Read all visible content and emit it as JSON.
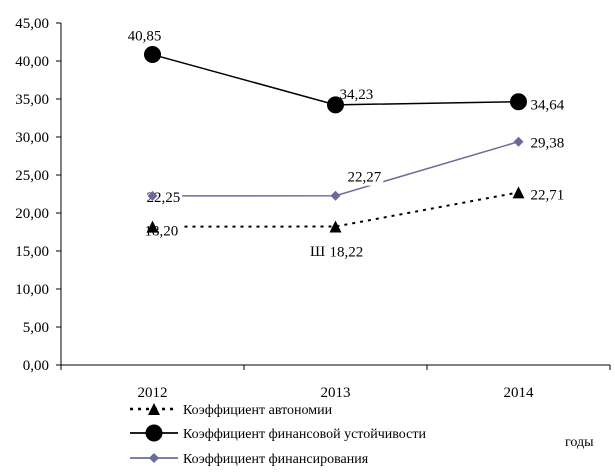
{
  "chart_data": {
    "type": "line",
    "categories": [
      "2012",
      "2013",
      "2014"
    ],
    "ylim": [
      0,
      45
    ],
    "yticks": [
      "0,00",
      "5,00",
      "10,00",
      "15,00",
      "20,00",
      "25,00",
      "30,00",
      "35,00",
      "40,00",
      "45,00"
    ],
    "xlabel": "годы",
    "legend_position": "bottom",
    "grid": false,
    "series": [
      {
        "name": "Коэффициент автономии",
        "values": [
          18.2,
          18.22,
          22.71
        ],
        "labels": [
          "18,20",
          "18,22",
          "22,71"
        ],
        "color": "#000000",
        "marker": "triangle",
        "line": "dotted"
      },
      {
        "name": "Коэффициент финансовой устойчивости",
        "values": [
          40.85,
          34.23,
          34.64
        ],
        "labels": [
          "40,85",
          "34,23",
          "34,64"
        ],
        "color": "#000000",
        "marker": "circle",
        "line": "solid"
      },
      {
        "name": "Коэффициент финансирования",
        "values": [
          22.25,
          22.27,
          29.38
        ],
        "labels": [
          "22,25",
          "22,27",
          "29,38"
        ],
        "color": "#6b6b9a",
        "marker": "diamond",
        "line": "solid"
      }
    ],
    "annotations": [
      "Ш"
    ]
  }
}
